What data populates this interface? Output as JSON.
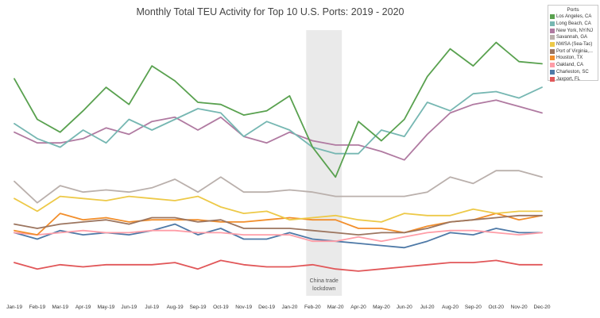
{
  "chart_data": {
    "type": "line",
    "title": "Monthly Total TEU Activity for Top 10 U.S. Ports: 2019 - 2020",
    "xlabel": "",
    "ylabel": "",
    "grid": false,
    "ylim": [
      0,
      100
    ],
    "categories": [
      "Jan-19",
      "Feb-19",
      "Mar-19",
      "Apr-19",
      "May-19",
      "Jun-19",
      "Jul-19",
      "Aug-19",
      "Sep-19",
      "Oct-19",
      "Nov-19",
      "Dec-19",
      "Jan-20",
      "Feb-20",
      "Mar-20",
      "Apr-20",
      "May-20",
      "Jun-20",
      "Jul-20",
      "Aug-20",
      "Sep-20",
      "Oct-20",
      "Nov-20",
      "Dec-20"
    ],
    "legend_title": "Ports",
    "legend_position": "top-right",
    "series": [
      {
        "name": "Los Angeles, CA",
        "color": "#59a14f",
        "values": [
          83,
          64,
          58,
          68,
          79,
          71,
          89,
          82,
          72,
          71,
          66,
          68,
          75,
          51,
          37,
          63,
          54,
          64,
          84,
          97,
          89,
          100,
          91,
          90
        ]
      },
      {
        "name": "Long Beach, CA",
        "color": "#76b7b2",
        "values": [
          62,
          55,
          51,
          59,
          53,
          64,
          59,
          64,
          69,
          67,
          56,
          63,
          59,
          51,
          48,
          48,
          59,
          56,
          72,
          68,
          76,
          77,
          74,
          79
        ]
      },
      {
        "name": "New York, NY/NJ",
        "color": "#b07aa1",
        "values": [
          58,
          53,
          53,
          55,
          60,
          57,
          63,
          65,
          59,
          65,
          56,
          53,
          58,
          54,
          52,
          52,
          49,
          45,
          57,
          67,
          71,
          73,
          70,
          67
        ]
      },
      {
        "name": "Savannah, GA",
        "color": "#bab0ac",
        "values": [
          35,
          25,
          33,
          30,
          31,
          30,
          32,
          36,
          30,
          37,
          30,
          30,
          31,
          30,
          28,
          28,
          28,
          28,
          30,
          37,
          34,
          40,
          40,
          37
        ]
      },
      {
        "name": "NWSA (Sea-Tac)",
        "color": "#edc948",
        "values": [
          27,
          21,
          28,
          27,
          26,
          28,
          27,
          26,
          28,
          23,
          20,
          21,
          17,
          18,
          19,
          17,
          16,
          20,
          19,
          19,
          22,
          20,
          21,
          21
        ]
      },
      {
        "name": "Port of Virginia,...",
        "color": "#9c755f",
        "values": [
          15,
          13,
          15,
          16,
          17,
          15,
          18,
          18,
          16,
          17,
          13,
          13,
          13,
          12,
          11,
          10,
          11,
          11,
          13,
          16,
          17,
          18,
          19,
          19
        ]
      },
      {
        "name": "Houston, TX",
        "color": "#f28e2b",
        "values": [
          12,
          10,
          20,
          17,
          18,
          16,
          17,
          17,
          17,
          16,
          16,
          17,
          18,
          17,
          17,
          13,
          13,
          11,
          14,
          16,
          17,
          20,
          17,
          19
        ]
      },
      {
        "name": "Oakland, CA",
        "color": "#ff9da7",
        "values": [
          11,
          10,
          11,
          12,
          11,
          11,
          12,
          12,
          11,
          11,
          10,
          10,
          10,
          7,
          7,
          9,
          7,
          9,
          11,
          12,
          12,
          11,
          10,
          11
        ]
      },
      {
        "name": "Charleston, SC",
        "color": "#4e79a7",
        "values": [
          11,
          8,
          12,
          10,
          11,
          10,
          12,
          15,
          10,
          13,
          8,
          8,
          11,
          8,
          7,
          6,
          5,
          4,
          7,
          11,
          10,
          13,
          11,
          11
        ]
      },
      {
        "name": "Jaxport, FL",
        "color": "#e15759",
        "values": [
          -3,
          -6,
          -4,
          -5,
          -4,
          -4,
          -4,
          -3,
          -6,
          -2,
          -4,
          -5,
          -5,
          -4,
          -6,
          -7,
          -6,
          -5,
          -4,
          -3,
          -3,
          -2,
          -4,
          -4
        ]
      }
    ],
    "annotation": {
      "text_line1": "China trade",
      "text_line2": "lockdown",
      "from": "Feb-20",
      "to": "Mar-20"
    }
  }
}
